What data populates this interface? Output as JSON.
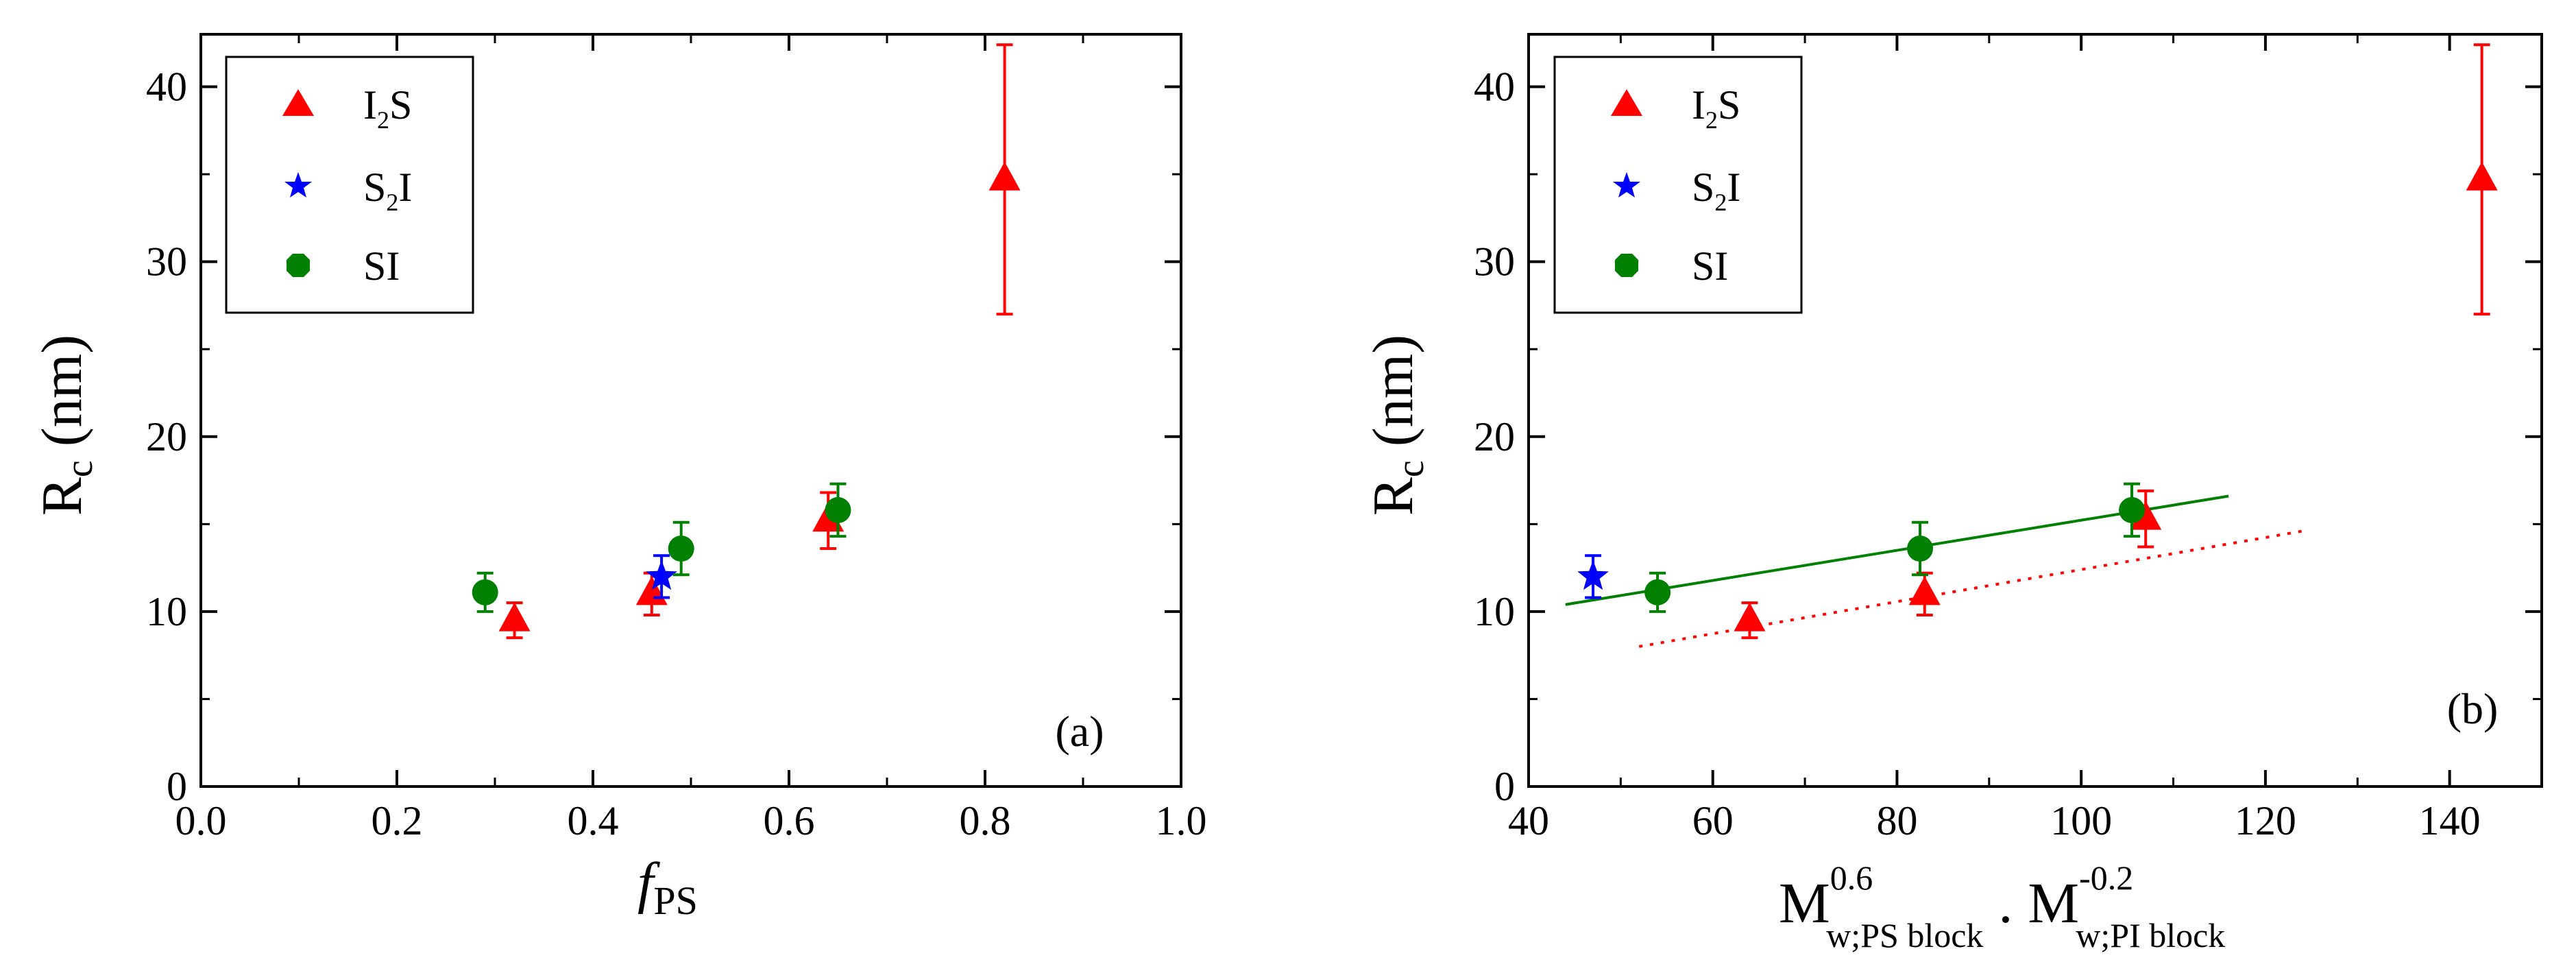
{
  "chart_data": [
    {
      "type": "scatter",
      "panel_label": "(a)",
      "xlabel": "f",
      "xlabel_sub": "PS",
      "ylabel": "R",
      "ylabel_sub": "c",
      "ylabel_unit": "(nm)",
      "xlim": [
        0.0,
        1.0
      ],
      "ylim": [
        0,
        43
      ],
      "xticks": [
        0.0,
        0.2,
        0.4,
        0.6,
        0.8,
        1.0
      ],
      "xtick_labels": [
        "0.0",
        "0.2",
        "0.4",
        "0.6",
        "0.8",
        "1.0"
      ],
      "yticks": [
        0,
        10,
        20,
        30,
        40
      ],
      "ytick_labels": [
        "0",
        "10",
        "20",
        "30",
        "40"
      ],
      "legend_position": "top-left",
      "series": [
        {
          "name": "I2S",
          "label_main": "I",
          "label_sub": "2",
          "label_end": "S",
          "marker": "triangle",
          "color": "#ff0000",
          "points": [
            {
              "x": 0.32,
              "y": 9.5,
              "err": 1.0
            },
            {
              "x": 0.46,
              "y": 11.0,
              "err": 1.2
            },
            {
              "x": 0.64,
              "y": 15.2,
              "err": 1.6
            },
            {
              "x": 0.82,
              "y": 34.7,
              "err": 7.7
            }
          ]
        },
        {
          "name": "S2I",
          "label_main": "S",
          "label_sub": "2",
          "label_end": "I",
          "marker": "star",
          "color": "#0000ff",
          "points": [
            {
              "x": 0.47,
              "y": 12.0,
              "err": 1.2
            }
          ]
        },
        {
          "name": "SI",
          "label_main": "SI",
          "label_sub": "",
          "label_end": "",
          "marker": "circle",
          "color": "#008000",
          "points": [
            {
              "x": 0.29,
              "y": 11.1,
              "err": 1.1
            },
            {
              "x": 0.49,
              "y": 13.6,
              "err": 1.5
            },
            {
              "x": 0.65,
              "y": 15.8,
              "err": 1.5
            }
          ]
        }
      ]
    },
    {
      "type": "scatter",
      "panel_label": "(b)",
      "xlabel_parts": {
        "m1": "M",
        "m1_sup": "0.6",
        "m1_sub": "w;PS block",
        "dot": ".",
        "m2": "M",
        "m2_sup": "-0.2",
        "m2_sub": "w;PI block"
      },
      "ylabel": "R",
      "ylabel_sub": "c",
      "ylabel_unit": "(nm)",
      "xlim": [
        40,
        150
      ],
      "ylim": [
        0,
        43
      ],
      "xticks": [
        40,
        60,
        80,
        100,
        120,
        140
      ],
      "xtick_labels": [
        "40",
        "60",
        "80",
        "100",
        "120",
        "140"
      ],
      "yticks": [
        0,
        10,
        20,
        30,
        40
      ],
      "ytick_labels": [
        "0",
        "10",
        "20",
        "30",
        "40"
      ],
      "legend_position": "top-left",
      "series": [
        {
          "name": "I2S",
          "label_main": "I",
          "label_sub": "2",
          "label_end": "S",
          "marker": "triangle",
          "color": "#ff0000",
          "points": [
            {
              "x": 64.0,
              "y": 9.5,
              "err": 1.0
            },
            {
              "x": 83.0,
              "y": 11.0,
              "err": 1.2
            },
            {
              "x": 107.0,
              "y": 15.3,
              "err": 1.6
            },
            {
              "x": 143.5,
              "y": 34.7,
              "err": 7.7
            }
          ]
        },
        {
          "name": "S2I",
          "label_main": "S",
          "label_sub": "2",
          "label_end": "I",
          "marker": "star",
          "color": "#0000ff",
          "points": [
            {
              "x": 47.0,
              "y": 12.0,
              "err": 1.2
            }
          ]
        },
        {
          "name": "SI",
          "label_main": "SI",
          "label_sub": "",
          "label_end": "",
          "marker": "circle",
          "color": "#008000",
          "points": [
            {
              "x": 54.0,
              "y": 11.1,
              "err": 1.1
            },
            {
              "x": 82.5,
              "y": 13.6,
              "err": 1.5
            },
            {
              "x": 105.5,
              "y": 15.8,
              "err": 1.5
            }
          ]
        }
      ],
      "fit_lines": [
        {
          "name": "SI fit",
          "style": "solid",
          "color": "#008000",
          "x": [
            44,
            116
          ],
          "y": [
            10.4,
            16.6
          ]
        },
        {
          "name": "I2S fit",
          "style": "dotted",
          "color": "#ff0000",
          "x": [
            52,
            124
          ],
          "y": [
            8.0,
            14.6
          ]
        }
      ]
    }
  ]
}
